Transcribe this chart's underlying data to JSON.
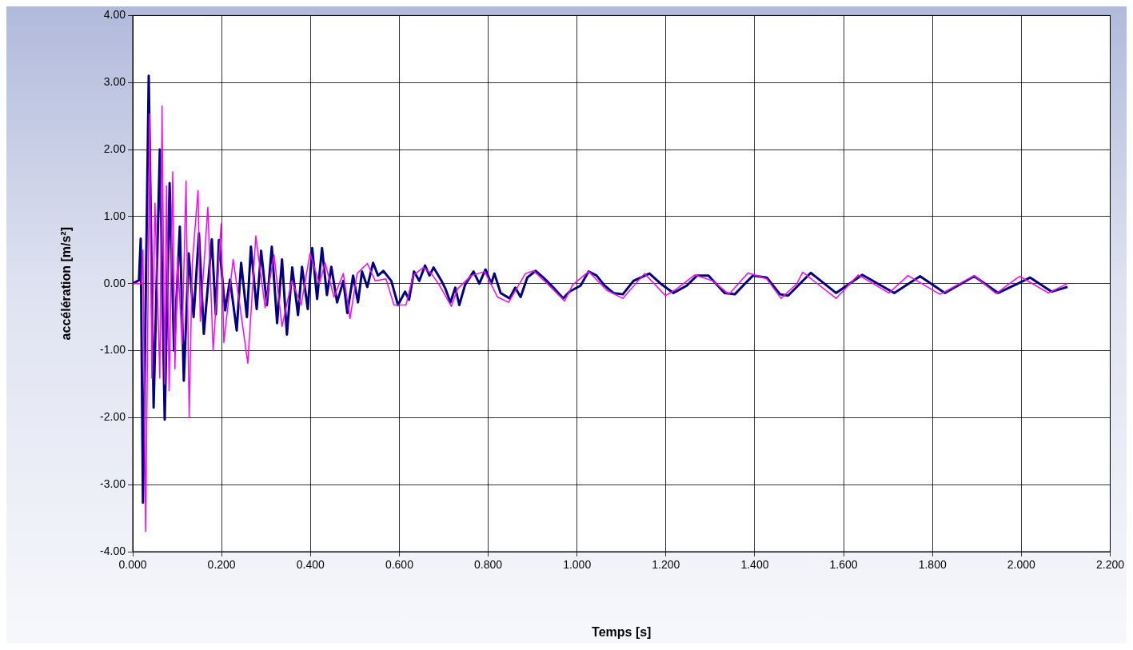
{
  "chart_data": {
    "type": "line",
    "xlabel": "Temps [s]",
    "ylabel": "accélération [m/s²]",
    "xlim": [
      0,
      2.2
    ],
    "ylim": [
      -4,
      4
    ],
    "xticks": [
      {
        "value": 0,
        "label": "0.000"
      },
      {
        "value": 0.2,
        "label": "0.200"
      },
      {
        "value": 0.4,
        "label": "0.400"
      },
      {
        "value": 0.6,
        "label": "0.600"
      },
      {
        "value": 0.8,
        "label": "0.800"
      },
      {
        "value": 1,
        "label": "1.000"
      },
      {
        "value": 1.2,
        "label": "1.200"
      },
      {
        "value": 1.4,
        "label": "1.400"
      },
      {
        "value": 1.6,
        "label": "1.600"
      },
      {
        "value": 1.8,
        "label": "1.800"
      },
      {
        "value": 2,
        "label": "2.000"
      },
      {
        "value": 2.2,
        "label": "2.200"
      }
    ],
    "yticks": [
      {
        "value": -4,
        "label": "-4.00"
      },
      {
        "value": -3,
        "label": "-3.00"
      },
      {
        "value": -2,
        "label": "-2.00"
      },
      {
        "value": -1,
        "label": "-1.00"
      },
      {
        "value": 0,
        "label": "0.00"
      },
      {
        "value": 1,
        "label": "1.00"
      },
      {
        "value": 2,
        "label": "2.00"
      },
      {
        "value": 3,
        "label": "3.00"
      },
      {
        "value": 4,
        "label": "4.00"
      }
    ],
    "grid": true,
    "legend": false,
    "marker": "none",
    "line_style": "solid",
    "series": [
      {
        "color": "#ff00ff",
        "x": [
          0,
          0.02,
          0.023,
          0.029,
          0.034,
          0.038,
          0.043,
          0.05,
          0.061,
          0.066,
          0.072,
          0.076,
          0.082,
          0.09,
          0.095,
          0.101,
          0.111,
          0.12,
          0.127,
          0.134,
          0.147,
          0.152,
          0.169,
          0.181,
          0.199,
          0.205,
          0.226,
          0.241,
          0.259,
          0.277,
          0.298,
          0.318,
          0.336,
          0.358,
          0.379,
          0.399,
          0.42,
          0.433,
          0.453,
          0.474,
          0.489,
          0.505,
          0.528,
          0.546,
          0.57,
          0.588,
          0.615,
          0.631,
          0.654,
          0.672,
          0.69,
          0.717,
          0.731,
          0.762,
          0.792,
          0.821,
          0.846,
          0.884,
          0.902,
          0.936,
          0.972,
          0.99,
          1.026,
          1.067,
          1.103,
          1.152,
          1.199,
          1.224,
          1.265,
          1.306,
          1.342,
          1.385,
          1.427,
          1.459,
          1.495,
          1.508,
          1.583,
          1.633,
          1.702,
          1.745,
          1.817,
          1.894,
          1.943,
          1.996,
          2.061,
          2.104
        ],
        "values": [
          0,
          0,
          0.5,
          -3.7,
          -0.5,
          2.53,
          -1.41,
          1.2,
          -1.41,
          2.65,
          -1.5,
          1.46,
          -1.6,
          1.67,
          -1.27,
          0.4,
          -0.9,
          1.53,
          -2.0,
          0.3,
          1.39,
          -0.56,
          1.14,
          -1.0,
          0.89,
          -0.88,
          0.36,
          -0.32,
          -1.19,
          0.71,
          -0.36,
          0.43,
          -0.64,
          0.04,
          -0.32,
          0.45,
          0,
          0.31,
          -0.2,
          0.15,
          -0.52,
          0.15,
          0.3,
          0.04,
          0.07,
          -0.32,
          -0.32,
          0.12,
          0.24,
          0.15,
          -0.02,
          -0.34,
          -0.08,
          0.12,
          0.18,
          -0.2,
          -0.28,
          0.15,
          0.19,
          -0.02,
          -0.26,
          -0.02,
          0.18,
          -0.1,
          -0.22,
          0.15,
          -0.18,
          -0.08,
          0.13,
          0.04,
          -0.16,
          0.16,
          0.07,
          -0.22,
          0,
          0.17,
          -0.22,
          0.13,
          -0.14,
          0.12,
          -0.16,
          0.12,
          -0.15,
          0.11,
          -0.14,
          0
        ]
      },
      {
        "color": "#000080",
        "x": [
          0,
          0.014,
          0.018,
          0.023,
          0.036,
          0.047,
          0.061,
          0.072,
          0.083,
          0.093,
          0.106,
          0.115,
          0.126,
          0.137,
          0.149,
          0.16,
          0.178,
          0.187,
          0.194,
          0.208,
          0.219,
          0.234,
          0.244,
          0.257,
          0.266,
          0.279,
          0.289,
          0.302,
          0.313,
          0.325,
          0.336,
          0.347,
          0.359,
          0.372,
          0.381,
          0.394,
          0.404,
          0.415,
          0.426,
          0.437,
          0.447,
          0.46,
          0.474,
          0.483,
          0.496,
          0.507,
          0.516,
          0.528,
          0.541,
          0.552,
          0.564,
          0.582,
          0.597,
          0.613,
          0.622,
          0.633,
          0.645,
          0.658,
          0.668,
          0.677,
          0.695,
          0.704,
          0.715,
          0.726,
          0.735,
          0.748,
          0.767,
          0.78,
          0.794,
          0.807,
          0.814,
          0.828,
          0.848,
          0.861,
          0.873,
          0.888,
          0.907,
          0.924,
          0.947,
          0.969,
          0.983,
          1.008,
          1.026,
          1.044,
          1.062,
          1.082,
          1.103,
          1.127,
          1.163,
          1.188,
          1.217,
          1.247,
          1.27,
          1.296,
          1.332,
          1.355,
          1.378,
          1.396,
          1.427,
          1.457,
          1.475,
          1.526,
          1.583,
          1.642,
          1.714,
          1.772,
          1.828,
          1.894,
          1.948,
          2.02,
          2.068,
          2.104
        ],
        "values": [
          0,
          0.05,
          0.67,
          -3.27,
          3.1,
          -1.85,
          2.0,
          -2.03,
          1.5,
          -1.0,
          0.85,
          -1.45,
          0.45,
          -0.5,
          0.75,
          -0.75,
          0.66,
          -0.46,
          0.65,
          -0.4,
          0.06,
          -0.7,
          0.31,
          -0.5,
          0.55,
          -0.38,
          0.49,
          -0.32,
          0.55,
          -0.59,
          0.36,
          -0.76,
          0.24,
          -0.47,
          0.25,
          -0.38,
          0.53,
          -0.23,
          0.53,
          -0.17,
          0.25,
          -0.28,
          0.04,
          -0.44,
          0.12,
          -0.28,
          0.18,
          -0.05,
          0.31,
          0.12,
          0.19,
          0.04,
          -0.32,
          -0.12,
          -0.24,
          0.18,
          0.04,
          0.27,
          0.12,
          0.24,
          0.04,
          -0.08,
          -0.28,
          -0.06,
          -0.32,
          -0.02,
          0.18,
          0,
          0.21,
          0,
          0.15,
          -0.14,
          -0.22,
          -0.06,
          -0.2,
          0.09,
          0.19,
          0.09,
          -0.06,
          -0.22,
          -0.12,
          -0.03,
          0.18,
          0.12,
          -0.03,
          -0.14,
          -0.16,
          0.04,
          0.15,
          0,
          -0.14,
          -0.03,
          0.12,
          0.12,
          -0.14,
          -0.16,
          0,
          0.12,
          0.09,
          -0.16,
          -0.18,
          0.16,
          -0.14,
          0.13,
          -0.14,
          0.11,
          -0.14,
          0.11,
          -0.14,
          0.09,
          -0.12,
          -0.05
        ]
      }
    ]
  }
}
